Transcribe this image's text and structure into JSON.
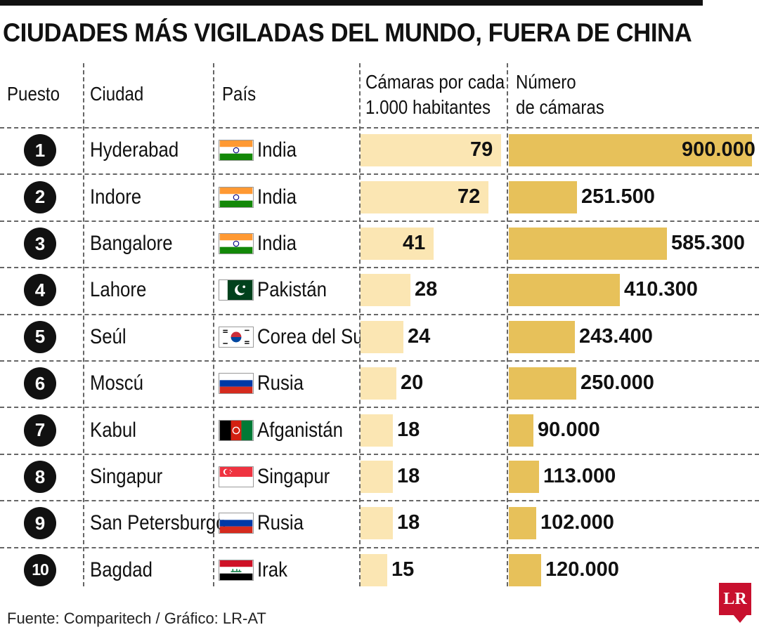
{
  "title": "CIUDADES MÁS VIGILADAS DEL MUNDO, FUERA DE CHINA",
  "headers": {
    "rank": "Puesto",
    "city": "Ciudad",
    "country": "País",
    "per1000_line1": "Cámaras por cada",
    "per1000_line2": "1.000 habitantes",
    "cameras_line1": "Número",
    "cameras_line2": "de cámaras"
  },
  "source": "Fuente: Comparitech / Gráfico: LR-AT",
  "logo": "LR",
  "colors": {
    "bar_light": "#fbe6b3",
    "bar_gold": "#e7c15a",
    "logo_red": "#c8102e"
  },
  "chart_data": {
    "type": "table",
    "title": "CIUDADES MÁS VIGILADAS DEL MUNDO, FUERA DE CHINA",
    "columns": [
      "Puesto",
      "Ciudad",
      "País",
      "Cámaras por cada 1.000 habitantes",
      "Número de cámaras"
    ],
    "rows": [
      {
        "rank": "1",
        "city": "Hyderabad",
        "country": "India",
        "flag": "india-flag-icon",
        "per1000": 79,
        "per1000_label": "79",
        "cameras": 900000,
        "cameras_label": "900.000"
      },
      {
        "rank": "2",
        "city": "Indore",
        "country": "India",
        "flag": "india-flag-icon",
        "per1000": 72,
        "per1000_label": "72",
        "cameras": 251500,
        "cameras_label": "251.500"
      },
      {
        "rank": "3",
        "city": "Bangalore",
        "country": "India",
        "flag": "india-flag-icon",
        "per1000": 41,
        "per1000_label": "41",
        "cameras": 585300,
        "cameras_label": "585.300"
      },
      {
        "rank": "4",
        "city": "Lahore",
        "country": "Pakistán",
        "flag": "pakistan-flag-icon",
        "per1000": 28,
        "per1000_label": "28",
        "cameras": 410300,
        "cameras_label": "410.300"
      },
      {
        "rank": "5",
        "city": "Seúl",
        "country": "Corea del Sur",
        "flag": "south-korea-flag-icon",
        "per1000": 24,
        "per1000_label": "24",
        "cameras": 243400,
        "cameras_label": "243.400"
      },
      {
        "rank": "6",
        "city": "Moscú",
        "country": "Rusia",
        "flag": "russia-flag-icon",
        "per1000": 20,
        "per1000_label": "20",
        "cameras": 250000,
        "cameras_label": "250.000"
      },
      {
        "rank": "7",
        "city": "Kabul",
        "country": "Afganistán",
        "flag": "afghanistan-flag-icon",
        "per1000": 18,
        "per1000_label": "18",
        "cameras": 90000,
        "cameras_label": "90.000"
      },
      {
        "rank": "8",
        "city": "Singapur",
        "country": "Singapur",
        "flag": "singapore-flag-icon",
        "per1000": 18,
        "per1000_label": "18",
        "cameras": 113000,
        "cameras_label": "113.000"
      },
      {
        "rank": "9",
        "city": "San Petersburgo",
        "country": "Rusia",
        "flag": "russia-flag-icon",
        "per1000": 18,
        "per1000_label": "18",
        "cameras": 102000,
        "cameras_label": "102.000"
      },
      {
        "rank": "10",
        "city": "Bagdad",
        "country": "Irak",
        "flag": "iraq-flag-icon",
        "per1000": 15,
        "per1000_label": "15",
        "cameras": 120000,
        "cameras_label": "120.000"
      }
    ],
    "per1000_max": 79,
    "cameras_max": 900000
  }
}
